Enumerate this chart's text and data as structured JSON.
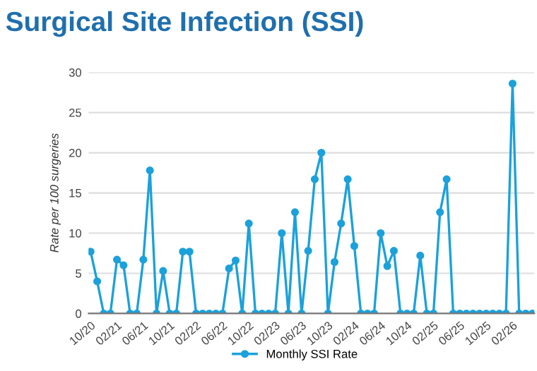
{
  "chart_data": {
    "type": "line",
    "title": "Surgical Site Infection (SSI)",
    "ylabel": "Rate per 100 surgeries",
    "categories": [
      "10/20",
      null,
      null,
      null,
      "02/21",
      null,
      null,
      null,
      "06/21",
      null,
      null,
      null,
      "10/21",
      null,
      null,
      null,
      "02/22",
      null,
      null,
      null,
      "06/22",
      null,
      null,
      null,
      "10/22",
      null,
      null,
      null,
      "02/23",
      null,
      null,
      null,
      "06/23",
      null,
      null,
      null,
      "10/23",
      null,
      null,
      null,
      "02/24",
      null,
      null,
      null,
      "06/24",
      null,
      null,
      null,
      "10/24",
      null,
      null,
      null,
      "02/25",
      null,
      null,
      null,
      "06/25",
      null,
      null,
      null,
      "10/25",
      null,
      null,
      null,
      "02/26",
      null,
      null,
      null
    ],
    "series": [
      {
        "name": "Monthly SSI Rate",
        "color": "#1ba1db",
        "values": [
          7.7,
          4,
          0,
          0,
          6.7,
          6,
          0,
          0,
          6.7,
          17.8,
          0,
          5.3,
          0,
          0,
          7.7,
          7.7,
          0,
          0,
          0,
          0,
          0,
          5.6,
          6.6,
          0,
          11.2,
          0,
          0,
          0,
          0,
          10,
          0,
          12.6,
          0,
          7.8,
          16.7,
          20,
          0,
          6.4,
          11.2,
          16.7,
          8.4,
          0,
          0,
          0,
          10,
          5.9,
          7.8,
          0,
          0,
          0,
          7.2,
          0,
          0,
          12.6,
          16.7,
          0,
          0,
          0,
          0,
          0,
          0,
          0,
          0,
          0,
          28.6,
          0,
          0,
          0
        ]
      }
    ],
    "ylim": [
      0,
      30
    ],
    "yticks": [
      0,
      5,
      10,
      15,
      20,
      25,
      30
    ],
    "grid": "y",
    "legend": "bottom",
    "marker": "circle",
    "line_style": "solid"
  }
}
